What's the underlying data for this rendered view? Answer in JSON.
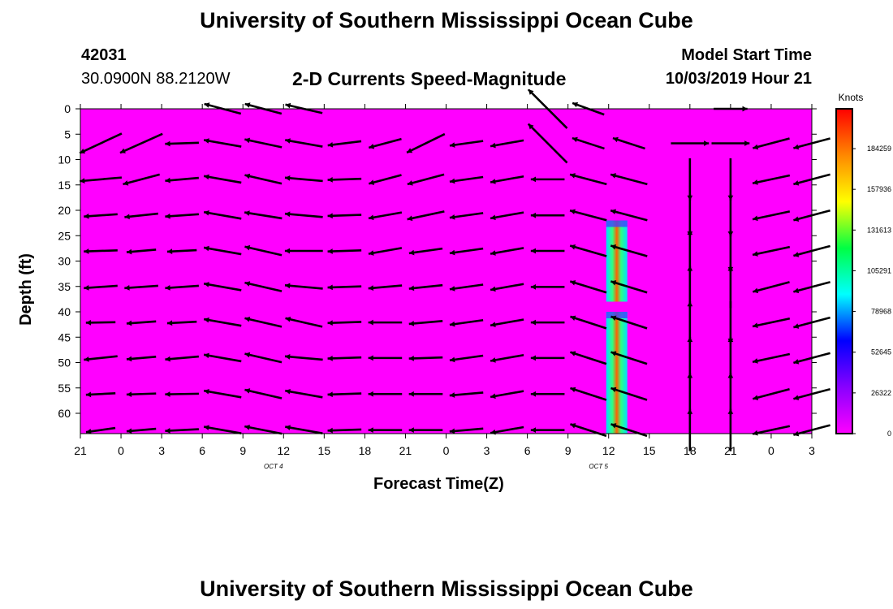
{
  "page": {
    "title_top": "University of Southern Mississippi Ocean Cube",
    "title_bottom": "University of Southern Mississippi Ocean Cube",
    "station_id": "42031",
    "station_coords": "30.0900N 88.2120W",
    "chart_title": "2-D Currents Speed-Magnitude",
    "model_start_label": "Model Start Time",
    "model_start_time": "10/03/2019 Hour 21"
  },
  "chart_data": {
    "type": "heatmap",
    "title": "2-D Currents Speed-Magnitude",
    "xlabel": "Forecast Time(Z)",
    "ylabel": "Depth (ft)",
    "x_tick_labels": [
      "21",
      "0",
      "3",
      "6",
      "9",
      "12",
      "15",
      "18",
      "21",
      "0",
      "3",
      "6",
      "9",
      "12",
      "15",
      "18",
      "21",
      "0",
      "3"
    ],
    "date_labels": [
      {
        "after_tick_index": 5,
        "text": "OCT 4"
      },
      {
        "after_tick_index": 13,
        "text": "OCT 5"
      }
    ],
    "y_ticks": [
      0,
      5,
      10,
      15,
      20,
      25,
      30,
      35,
      40,
      45,
      50,
      55,
      60
    ],
    "ylim": [
      0,
      64
    ],
    "y_inverted": true,
    "background_color": "#ff00ff",
    "colorbar": {
      "units": "Knots",
      "tick_labels": [
        "0",
        "26322",
        "52645",
        "78968",
        "105291",
        "131613",
        "157936",
        "184259"
      ],
      "colors": [
        "#ff00ff",
        "#8800ff",
        "#0000ff",
        "#00ffff",
        "#00ff44",
        "#ffff00",
        "#ff8800",
        "#ff0000"
      ]
    },
    "high_speed_bands": [
      {
        "time_tick_index": 13.2,
        "depth_range": [
          22,
          38
        ]
      },
      {
        "time_tick_index": 13.2,
        "depth_range": [
          40,
          64
        ]
      }
    ],
    "vector_depths": [
      0,
      6.8,
      13.9,
      21.0,
      28.0,
      35.1,
      42.1,
      49.1,
      56.2,
      63.3
    ],
    "vector_columns": [
      {
        "t": 0.5,
        "d": [
          [
            -999,
            0
          ],
          [
            155,
            11
          ],
          [
            175,
            10
          ],
          [
            176,
            8
          ],
          [
            178,
            8
          ],
          [
            176,
            8
          ],
          [
            179,
            7
          ],
          [
            174,
            8
          ],
          [
            177,
            7
          ],
          [
            172,
            7
          ]
        ]
      },
      {
        "t": 1.5,
        "d": [
          [
            -999,
            0
          ],
          [
            156,
            11
          ],
          [
            165,
            9
          ],
          [
            174,
            8
          ],
          [
            175,
            7
          ],
          [
            176,
            8
          ],
          [
            176,
            7
          ],
          [
            175,
            7
          ],
          [
            178,
            7
          ],
          [
            175,
            7
          ]
        ]
      },
      {
        "t": 2.5,
        "d": [
          [
            -999,
            0
          ],
          [
            178,
            8
          ],
          [
            175,
            8
          ],
          [
            176,
            8
          ],
          [
            177,
            7
          ],
          [
            176,
            8
          ],
          [
            177,
            7
          ],
          [
            175,
            8
          ],
          [
            179,
            8
          ],
          [
            177,
            8
          ]
        ]
      },
      {
        "t": 3.5,
        "d": [
          [
            195,
            9
          ],
          [
            190,
            9
          ],
          [
            190,
            9
          ],
          [
            190,
            9
          ],
          [
            190,
            9
          ],
          [
            190,
            9
          ],
          [
            190,
            9
          ],
          [
            190,
            9
          ],
          [
            190,
            9
          ],
          [
            190,
            9
          ]
        ]
      },
      {
        "t": 4.5,
        "d": [
          [
            195,
            9
          ],
          [
            192,
            9
          ],
          [
            193,
            9
          ],
          [
            189,
            9
          ],
          [
            193,
            9
          ],
          [
            193,
            9
          ],
          [
            193,
            9
          ],
          [
            193,
            9
          ],
          [
            193,
            9
          ],
          [
            191,
            9
          ]
        ]
      },
      {
        "t": 5.5,
        "d": [
          [
            193,
            9
          ],
          [
            190,
            9
          ],
          [
            185,
            9
          ],
          [
            185,
            9
          ],
          [
            180,
            9
          ],
          [
            185,
            9
          ],
          [
            193,
            9
          ],
          [
            185,
            9
          ],
          [
            190,
            9
          ],
          [
            190,
            9
          ]
        ]
      },
      {
        "t": 6.5,
        "d": [
          [
            180,
            0
          ],
          [
            173,
            8
          ],
          [
            178,
            8
          ],
          [
            178,
            8
          ],
          [
            178,
            8
          ],
          [
            178,
            8
          ],
          [
            178,
            8
          ],
          [
            178,
            8
          ],
          [
            178,
            8
          ],
          [
            178,
            8
          ]
        ]
      },
      {
        "t": 7.5,
        "d": [
          [
            180,
            0
          ],
          [
            165,
            8
          ],
          [
            165,
            8
          ],
          [
            170,
            8
          ],
          [
            170,
            8
          ],
          [
            175,
            8
          ],
          [
            180,
            8
          ],
          [
            180,
            8
          ],
          [
            180,
            8
          ],
          [
            180,
            8
          ]
        ]
      },
      {
        "t": 8.5,
        "d": [
          [
            -999,
            0
          ],
          [
            154,
            10
          ],
          [
            165,
            9
          ],
          [
            168,
            9
          ],
          [
            172,
            8
          ],
          [
            174,
            8
          ],
          [
            175,
            8
          ],
          [
            178,
            8
          ],
          [
            180,
            8
          ],
          [
            180,
            8
          ]
        ]
      },
      {
        "t": 9.5,
        "d": [
          [
            -999,
            0
          ],
          [
            172,
            8
          ],
          [
            172,
            8
          ],
          [
            172,
            8
          ],
          [
            172,
            8
          ],
          [
            172,
            8
          ],
          [
            172,
            8
          ],
          [
            172,
            8
          ],
          [
            175,
            8
          ],
          [
            175,
            8
          ]
        ]
      },
      {
        "t": 10.5,
        "d": [
          [
            -999,
            0
          ],
          [
            170,
            8
          ],
          [
            170,
            8
          ],
          [
            170,
            8
          ],
          [
            170,
            8
          ],
          [
            170,
            8
          ],
          [
            170,
            8
          ],
          [
            170,
            8
          ],
          [
            170,
            8
          ],
          [
            170,
            8
          ]
        ]
      },
      {
        "t": 11.5,
        "d": [
          [
            225,
            13
          ],
          [
            225,
            13
          ],
          [
            180,
            8
          ],
          [
            180,
            8
          ],
          [
            180,
            8
          ],
          [
            180,
            8
          ],
          [
            180,
            8
          ],
          [
            180,
            8
          ],
          [
            180,
            8
          ],
          [
            180,
            8
          ]
        ]
      },
      {
        "t": 12.5,
        "d": [
          [
            200,
            8
          ],
          [
            198,
            8
          ],
          [
            195,
            9
          ],
          [
            195,
            9
          ],
          [
            196,
            9
          ],
          [
            197,
            9
          ],
          [
            198,
            9
          ],
          [
            198,
            9
          ],
          [
            198,
            9
          ],
          [
            198,
            9
          ]
        ]
      },
      {
        "t": 13.5,
        "d": [
          [
            -999,
            0
          ],
          [
            198,
            8
          ],
          [
            195,
            9
          ],
          [
            195,
            9
          ],
          [
            196,
            9
          ],
          [
            197,
            9
          ],
          [
            198,
            9
          ],
          [
            198,
            9
          ],
          [
            198,
            9
          ],
          [
            198,
            9
          ]
        ]
      },
      {
        "t": 15.0,
        "d": [
          [
            -999,
            0
          ],
          [
            0,
            9
          ],
          [
            90,
            10
          ],
          [
            90,
            10
          ],
          [
            270,
            10
          ],
          [
            270,
            10
          ],
          [
            270,
            10
          ],
          [
            270,
            10
          ],
          [
            270,
            10
          ],
          [
            270,
            10
          ]
        ]
      },
      {
        "t": 16.0,
        "d": [
          [
            0,
            8
          ],
          [
            0,
            9
          ],
          [
            90,
            10
          ],
          [
            90,
            10
          ],
          [
            90,
            10
          ],
          [
            270,
            10
          ],
          [
            90,
            10
          ],
          [
            270,
            10
          ],
          [
            270,
            10
          ],
          [
            270,
            10
          ]
        ]
      },
      {
        "t": 17.0,
        "d": [
          [
            -999,
            0
          ],
          [
            165,
            9
          ],
          [
            168,
            9
          ],
          [
            168,
            9
          ],
          [
            168,
            9
          ],
          [
            165,
            9
          ],
          [
            168,
            9
          ],
          [
            168,
            9
          ],
          [
            165,
            9
          ],
          [
            168,
            9
          ]
        ]
      },
      {
        "t": 18.0,
        "d": [
          [
            -999,
            0
          ],
          [
            165,
            9
          ],
          [
            165,
            9
          ],
          [
            165,
            9
          ],
          [
            165,
            9
          ],
          [
            165,
            9
          ],
          [
            165,
            9
          ],
          [
            165,
            9
          ],
          [
            165,
            9
          ],
          [
            165,
            9
          ]
        ]
      }
    ]
  }
}
